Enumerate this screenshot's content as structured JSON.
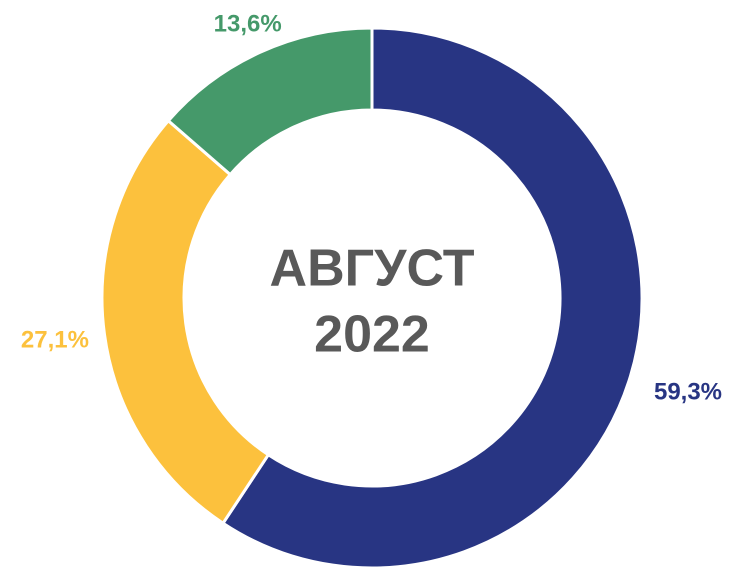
{
  "chart_data": {
    "type": "donut",
    "center_label": [
      "АВГУСТ",
      "2022"
    ],
    "categories": [
      null,
      null,
      null
    ],
    "values": [
      59.3,
      27.1,
      13.6
    ],
    "value_labels": [
      "59,3%",
      "27,1%",
      "13,6%"
    ],
    "colors": [
      "#283583",
      "#fcc13d",
      "#45996a"
    ]
  }
}
